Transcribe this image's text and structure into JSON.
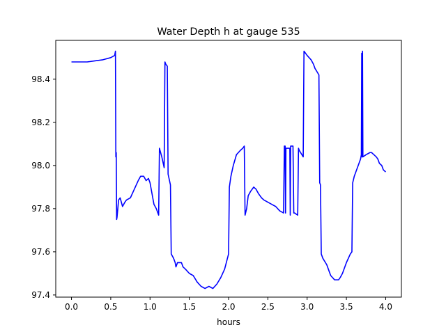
{
  "chart_data": {
    "type": "line",
    "title": "Water Depth h at gauge 535",
    "xlabel": "hours",
    "ylabel": "",
    "xlim": [
      -0.2,
      4.2
    ],
    "ylim": [
      97.39,
      98.58
    ],
    "xticks": [
      0.0,
      0.5,
      1.0,
      1.5,
      2.0,
      2.5,
      3.0,
      3.5,
      4.0
    ],
    "xtick_labels": [
      "0.0",
      "0.5",
      "1.0",
      "1.5",
      "2.0",
      "2.5",
      "3.0",
      "3.5",
      "4.0"
    ],
    "yticks": [
      97.4,
      97.6,
      97.8,
      98.0,
      98.2,
      98.4
    ],
    "ytick_labels": [
      "97.4",
      "97.6",
      "97.8",
      "98.0",
      "98.2",
      "98.4"
    ],
    "grid": false,
    "legend": "none",
    "series": [
      {
        "color": "#0000ff",
        "x": [
          0.0,
          0.2,
          0.3,
          0.4,
          0.5,
          0.55,
          0.56,
          0.565,
          0.57,
          0.575,
          0.58,
          0.6,
          0.62,
          0.65,
          0.68,
          0.7,
          0.75,
          0.8,
          0.85,
          0.88,
          0.92,
          0.95,
          0.98,
          1.0,
          1.05,
          1.08,
          1.1,
          1.11,
          1.12,
          1.15,
          1.18,
          1.19,
          1.2,
          1.22,
          1.23,
          1.26,
          1.27,
          1.3,
          1.32,
          1.33,
          1.35,
          1.4,
          1.42,
          1.45,
          1.5,
          1.55,
          1.6,
          1.65,
          1.7,
          1.75,
          1.8,
          1.85,
          1.9,
          1.95,
          2.0,
          2.01,
          2.03,
          2.06,
          2.1,
          2.15,
          2.18,
          2.2,
          2.21,
          2.23,
          2.25,
          2.28,
          2.32,
          2.35,
          2.38,
          2.42,
          2.45,
          2.5,
          2.55,
          2.6,
          2.65,
          2.7,
          2.71,
          2.72,
          2.725,
          2.73,
          2.77,
          2.78,
          2.785,
          2.79,
          2.8,
          2.82,
          2.83,
          2.84,
          2.88,
          2.89,
          2.9,
          2.95,
          2.96,
          3.0,
          3.05,
          3.08,
          3.1,
          3.15,
          3.16,
          3.17,
          3.18,
          3.2,
          3.25,
          3.28,
          3.3,
          3.35,
          3.4,
          3.42,
          3.45,
          3.5,
          3.55,
          3.57,
          3.58,
          3.6,
          3.65,
          3.68,
          3.69,
          3.695,
          3.7,
          3.705,
          3.71,
          3.75,
          3.8,
          3.82,
          3.85,
          3.88,
          3.9,
          3.92,
          3.95,
          3.97,
          4.0
        ],
        "y": [
          98.48,
          98.48,
          98.485,
          98.49,
          98.5,
          98.51,
          98.53,
          98.04,
          98.06,
          97.75,
          97.76,
          97.84,
          97.85,
          97.81,
          97.83,
          97.84,
          97.85,
          97.89,
          97.93,
          97.95,
          97.95,
          97.93,
          97.94,
          97.92,
          97.82,
          97.8,
          97.78,
          97.77,
          98.08,
          98.04,
          97.99,
          98.48,
          98.47,
          98.46,
          97.96,
          97.91,
          97.59,
          97.57,
          97.55,
          97.53,
          97.55,
          97.55,
          97.53,
          97.52,
          97.5,
          97.49,
          97.46,
          97.44,
          97.43,
          97.44,
          97.43,
          97.45,
          97.48,
          97.52,
          97.59,
          97.9,
          97.95,
          98.0,
          98.05,
          98.07,
          98.08,
          98.09,
          97.77,
          97.8,
          97.86,
          97.88,
          97.9,
          97.89,
          97.87,
          97.85,
          97.84,
          97.83,
          97.82,
          97.81,
          97.79,
          97.78,
          98.09,
          98.09,
          97.78,
          98.08,
          98.08,
          98.08,
          97.77,
          98.09,
          98.09,
          98.09,
          97.78,
          97.78,
          97.77,
          98.08,
          98.07,
          98.04,
          98.53,
          98.51,
          98.49,
          98.47,
          98.45,
          98.42,
          97.92,
          97.91,
          97.59,
          97.57,
          97.54,
          97.51,
          97.49,
          97.47,
          97.47,
          97.48,
          97.5,
          97.55,
          97.59,
          97.6,
          97.92,
          97.95,
          98.0,
          98.03,
          98.05,
          98.52,
          98.04,
          98.53,
          98.04,
          98.05,
          98.06,
          98.06,
          98.05,
          98.04,
          98.03,
          98.01,
          98.0,
          97.98,
          97.97
        ]
      }
    ]
  }
}
